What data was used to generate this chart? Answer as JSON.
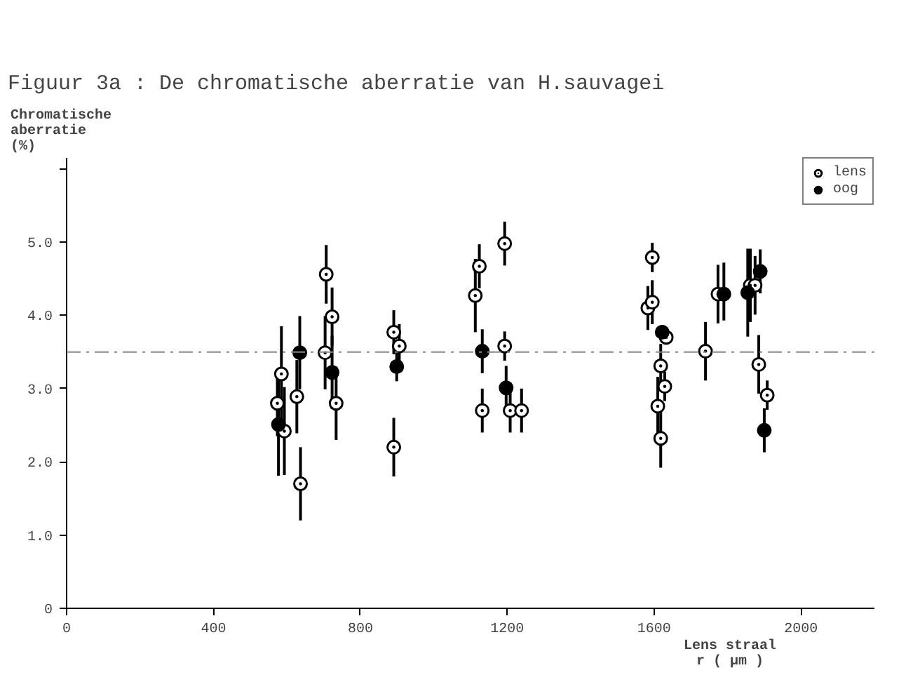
{
  "chart_data": {
    "type": "scatter",
    "title": "Figuur 3a : De chromatische aberratie van H.sauvagei",
    "xlabel": "Lens straal\nr ( μm )",
    "ylabel": "Chromatische\naberratie\n(%)",
    "xlim": [
      0,
      2200
    ],
    "xticks": [
      0,
      400,
      800,
      1200,
      1600,
      2000
    ],
    "ylim": [
      0,
      6.15
    ],
    "yticks": [
      0,
      {
        "value": 1,
        "label": "1.0"
      },
      {
        "value": 2,
        "label": "2.0"
      },
      {
        "value": 3,
        "label": "3.0"
      },
      {
        "value": 4,
        "label": "4.0"
      },
      {
        "value": 5,
        "label": "5.0"
      },
      {
        "value": 6,
        "label": null
      }
    ],
    "grid": false,
    "legend": "top right",
    "marker": "circle",
    "ref_lines": [
      {
        "axis": "y",
        "value": 3.5,
        "label": null,
        "color": "#888888",
        "line_style": "dashed"
      }
    ],
    "series": [
      {
        "name": "lens",
        "color": "#ffffff",
        "x": [
          574,
          585,
          593,
          627,
          637,
          707,
          723,
          704,
          734,
          891,
          906,
          891,
          1113,
          1124,
          1132,
          1193,
          1193,
          1208,
          1239,
          1583,
          1595,
          1595,
          1633,
          1618,
          1629,
          1610,
          1618,
          1740,
          1774,
          1862,
          1875,
          1885,
          1908
        ],
        "values": [
          2.8,
          3.2,
          2.42,
          2.89,
          1.7,
          4.56,
          3.98,
          3.49,
          2.8,
          3.77,
          3.58,
          2.2,
          4.27,
          4.67,
          2.7,
          4.98,
          3.58,
          2.7,
          2.7,
          4.1,
          4.18,
          4.79,
          3.7,
          3.31,
          3.03,
          2.76,
          2.32,
          3.51,
          4.29,
          4.41,
          4.41,
          3.33,
          2.91
        ],
        "errors": [
          0.45,
          0.65,
          0.6,
          0.5,
          0.5,
          0.4,
          0.4,
          0.5,
          0.5,
          0.3,
          0.3,
          0.4,
          0.5,
          0.3,
          0.3,
          0.3,
          0.2,
          0.3,
          0.3,
          0.3,
          0.3,
          0.2,
          0.1,
          0.3,
          0.2,
          0.4,
          0.4,
          0.4,
          0.4,
          0.5,
          0.4,
          0.4,
          0.2
        ]
      },
      {
        "name": "oog",
        "color": "#000000",
        "x": [
          577,
          635,
          723,
          899,
          1132,
          1197,
          1622,
          1790,
          1855,
          1889,
          1900
        ],
        "values": [
          2.51,
          3.49,
          3.22,
          3.3,
          3.51,
          3.01,
          3.77,
          4.29,
          4.31,
          4.6,
          2.43
        ],
        "errors": [
          0.7,
          0.5,
          0.5,
          0.2,
          0.3,
          0.3,
          0.1,
          [
            3.93,
            4.72
          ],
          0.6,
          0.3,
          0.3
        ]
      }
    ]
  }
}
